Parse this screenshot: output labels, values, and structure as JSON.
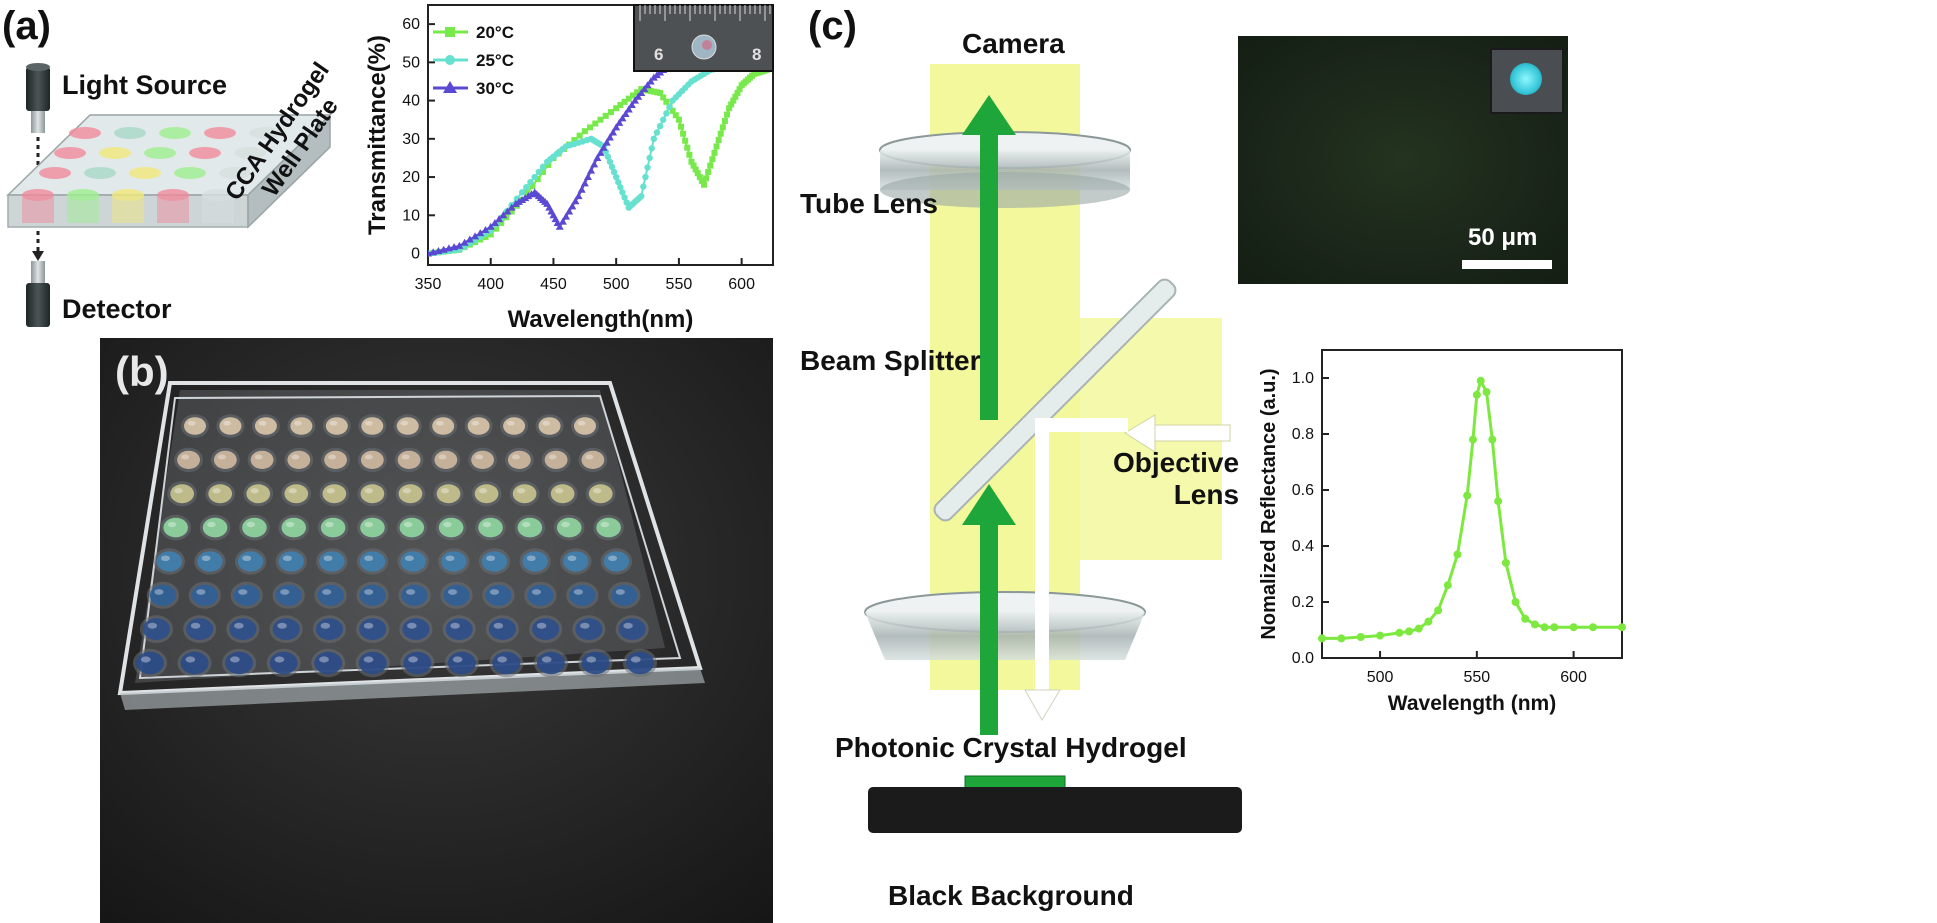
{
  "panels": {
    "a": {
      "letter": "(a)",
      "schematic": {
        "light_source": "Light Source",
        "detector": "Detector",
        "plate_label_line1": "CCA Hydrogel",
        "plate_label_line2": "Well Plate"
      },
      "inset_ruler_ticks": [
        "6",
        "8"
      ]
    },
    "b": {
      "letter": "(b)"
    },
    "c": {
      "letter": "(c)",
      "camera": "Camera",
      "tube_lens": "Tube Lens",
      "beam_splitter": "Beam Splitter",
      "objective_line1": "Objective",
      "objective_line2": "Lens",
      "photonic": "Photonic Crystal Hydrogel",
      "black_background": "Black Background",
      "scale_bar": "50 μm"
    }
  },
  "colors": {
    "s20": "#77e94a",
    "s25": "#66e0cf",
    "s30": "#5a49d2",
    "refl": "#7de840",
    "light_yellow": "#f2f78a",
    "green_arrow": "#1fa63b"
  },
  "chart_data": [
    {
      "type": "line",
      "title": "",
      "xlabel": "Wavelength(nm)",
      "ylabel": "Transmittance(%)",
      "xlim": [
        350,
        625
      ],
      "ylim": [
        -3,
        65
      ],
      "x_ticks": [
        "350",
        "400",
        "450",
        "500",
        "550",
        "600"
      ],
      "y_ticks": [
        "0",
        "10",
        "20",
        "30",
        "40",
        "50",
        "60"
      ],
      "legend_position": "top-left",
      "series": [
        {
          "name": "20°C",
          "x": [
            350,
            375,
            400,
            425,
            450,
            475,
            500,
            520,
            535,
            550,
            560,
            570,
            580,
            590,
            600,
            610,
            620
          ],
          "y": [
            0,
            1,
            5,
            14,
            25,
            32,
            38,
            43,
            42,
            35,
            24,
            18,
            28,
            38,
            44,
            47,
            48
          ]
        },
        {
          "name": "25°C",
          "x": [
            350,
            375,
            400,
            425,
            445,
            460,
            480,
            490,
            500,
            510,
            520,
            530,
            545,
            560,
            575,
            590
          ],
          "y": [
            0,
            1,
            6,
            16,
            24,
            28,
            30,
            28,
            20,
            12,
            15,
            30,
            40,
            45,
            48,
            49
          ]
        },
        {
          "name": "30°C",
          "x": [
            350,
            375,
            400,
            420,
            435,
            445,
            455,
            470,
            485,
            500,
            515,
            530,
            545,
            560
          ],
          "y": [
            0,
            2,
            7,
            13,
            16,
            13,
            7,
            15,
            25,
            33,
            40,
            46,
            50,
            52
          ]
        }
      ]
    },
    {
      "type": "line",
      "title": "",
      "xlabel": "Wavelength (nm)",
      "ylabel": "Nomalized Reflectance (a.u.)",
      "xlim": [
        470,
        625
      ],
      "ylim": [
        0,
        1.1
      ],
      "x_ticks": [
        "500",
        "550",
        "600"
      ],
      "y_ticks": [
        "0.0",
        "0.2",
        "0.4",
        "0.6",
        "0.8",
        "1.0"
      ],
      "series": [
        {
          "name": "",
          "x": [
            470,
            480,
            490,
            500,
            510,
            515,
            520,
            525,
            530,
            535,
            540,
            545,
            548,
            550,
            552,
            555,
            558,
            561,
            565,
            570,
            575,
            580,
            585,
            590,
            600,
            610,
            625
          ],
          "y": [
            0.07,
            0.07,
            0.075,
            0.08,
            0.09,
            0.095,
            0.105,
            0.13,
            0.17,
            0.26,
            0.37,
            0.58,
            0.78,
            0.94,
            0.99,
            0.95,
            0.78,
            0.56,
            0.34,
            0.2,
            0.14,
            0.12,
            0.11,
            0.11,
            0.11,
            0.11,
            0.11
          ]
        }
      ]
    }
  ]
}
